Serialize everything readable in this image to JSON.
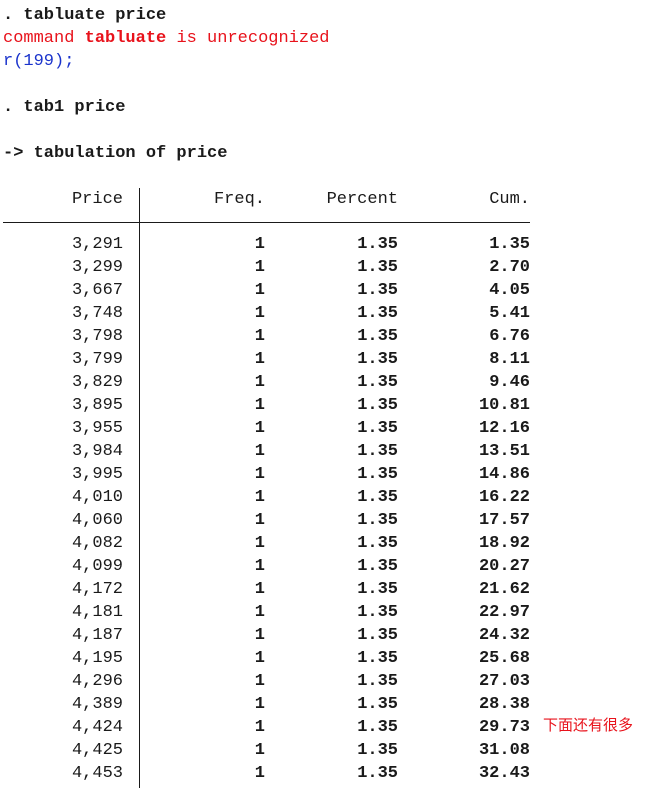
{
  "console": {
    "cmd1": ". tabluate price",
    "err_prefix": "command ",
    "err_word": "tabluate",
    "err_suffix": " is unrecognized",
    "ret_code": "r(199);",
    "cmd2": ". tab1 price",
    "tab_title": "-> tabulation of price"
  },
  "table": {
    "headers": {
      "price": "Price",
      "freq": "Freq.",
      "percent": "Percent",
      "cum": "Cum."
    },
    "rows": [
      [
        "3,291",
        "1",
        "1.35",
        "1.35"
      ],
      [
        "3,299",
        "1",
        "1.35",
        "2.70"
      ],
      [
        "3,667",
        "1",
        "1.35",
        "4.05"
      ],
      [
        "3,748",
        "1",
        "1.35",
        "5.41"
      ],
      [
        "3,798",
        "1",
        "1.35",
        "6.76"
      ],
      [
        "3,799",
        "1",
        "1.35",
        "8.11"
      ],
      [
        "3,829",
        "1",
        "1.35",
        "9.46"
      ],
      [
        "3,895",
        "1",
        "1.35",
        "10.81"
      ],
      [
        "3,955",
        "1",
        "1.35",
        "12.16"
      ],
      [
        "3,984",
        "1",
        "1.35",
        "13.51"
      ],
      [
        "3,995",
        "1",
        "1.35",
        "14.86"
      ],
      [
        "4,010",
        "1",
        "1.35",
        "16.22"
      ],
      [
        "4,060",
        "1",
        "1.35",
        "17.57"
      ],
      [
        "4,082",
        "1",
        "1.35",
        "18.92"
      ],
      [
        "4,099",
        "1",
        "1.35",
        "20.27"
      ],
      [
        "4,172",
        "1",
        "1.35",
        "21.62"
      ],
      [
        "4,181",
        "1",
        "1.35",
        "22.97"
      ],
      [
        "4,187",
        "1",
        "1.35",
        "24.32"
      ],
      [
        "4,195",
        "1",
        "1.35",
        "25.68"
      ],
      [
        "4,296",
        "1",
        "1.35",
        "27.03"
      ],
      [
        "4,389",
        "1",
        "1.35",
        "28.38"
      ],
      [
        "4,424",
        "1",
        "1.35",
        "29.73"
      ],
      [
        "4,425",
        "1",
        "1.35",
        "31.08"
      ],
      [
        "4,453",
        "1",
        "1.35",
        "32.43"
      ]
    ]
  },
  "annotation": "下面还有很多"
}
